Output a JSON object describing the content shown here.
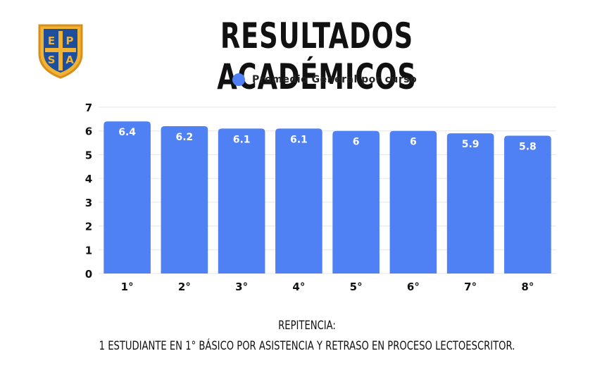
{
  "header": {
    "title": "RESULTADOS ACADÉMICOS",
    "logo_letters": [
      "E",
      "P",
      "S",
      "A"
    ]
  },
  "chart_data": {
    "type": "bar",
    "categories": [
      "1°",
      "2°",
      "3°",
      "4°",
      "5°",
      "6°",
      "7°",
      "8°"
    ],
    "series": [
      {
        "name": "Promedio General por curso",
        "values": [
          6.4,
          6.2,
          6.1,
          6.1,
          6,
          6,
          5.9,
          5.8
        ]
      }
    ],
    "data_labels": [
      "6.4",
      "6.2",
      "6.1",
      "6.1",
      "6",
      "6",
      "5.9",
      "5.8"
    ],
    "yticks": [
      "0",
      "1",
      "2",
      "3",
      "4",
      "5",
      "6",
      "7"
    ],
    "ylim": [
      0,
      7
    ],
    "grid": true,
    "legend_position": "top-center",
    "bar_color": "#4f81f5"
  },
  "footer": {
    "line1": "REPITENCIA:",
    "line2": "1 ESTUDIANTE EN 1° BÁSICO POR ASISTENCIA Y RETRASO EN PROCESO LECTOESCRITOR."
  }
}
